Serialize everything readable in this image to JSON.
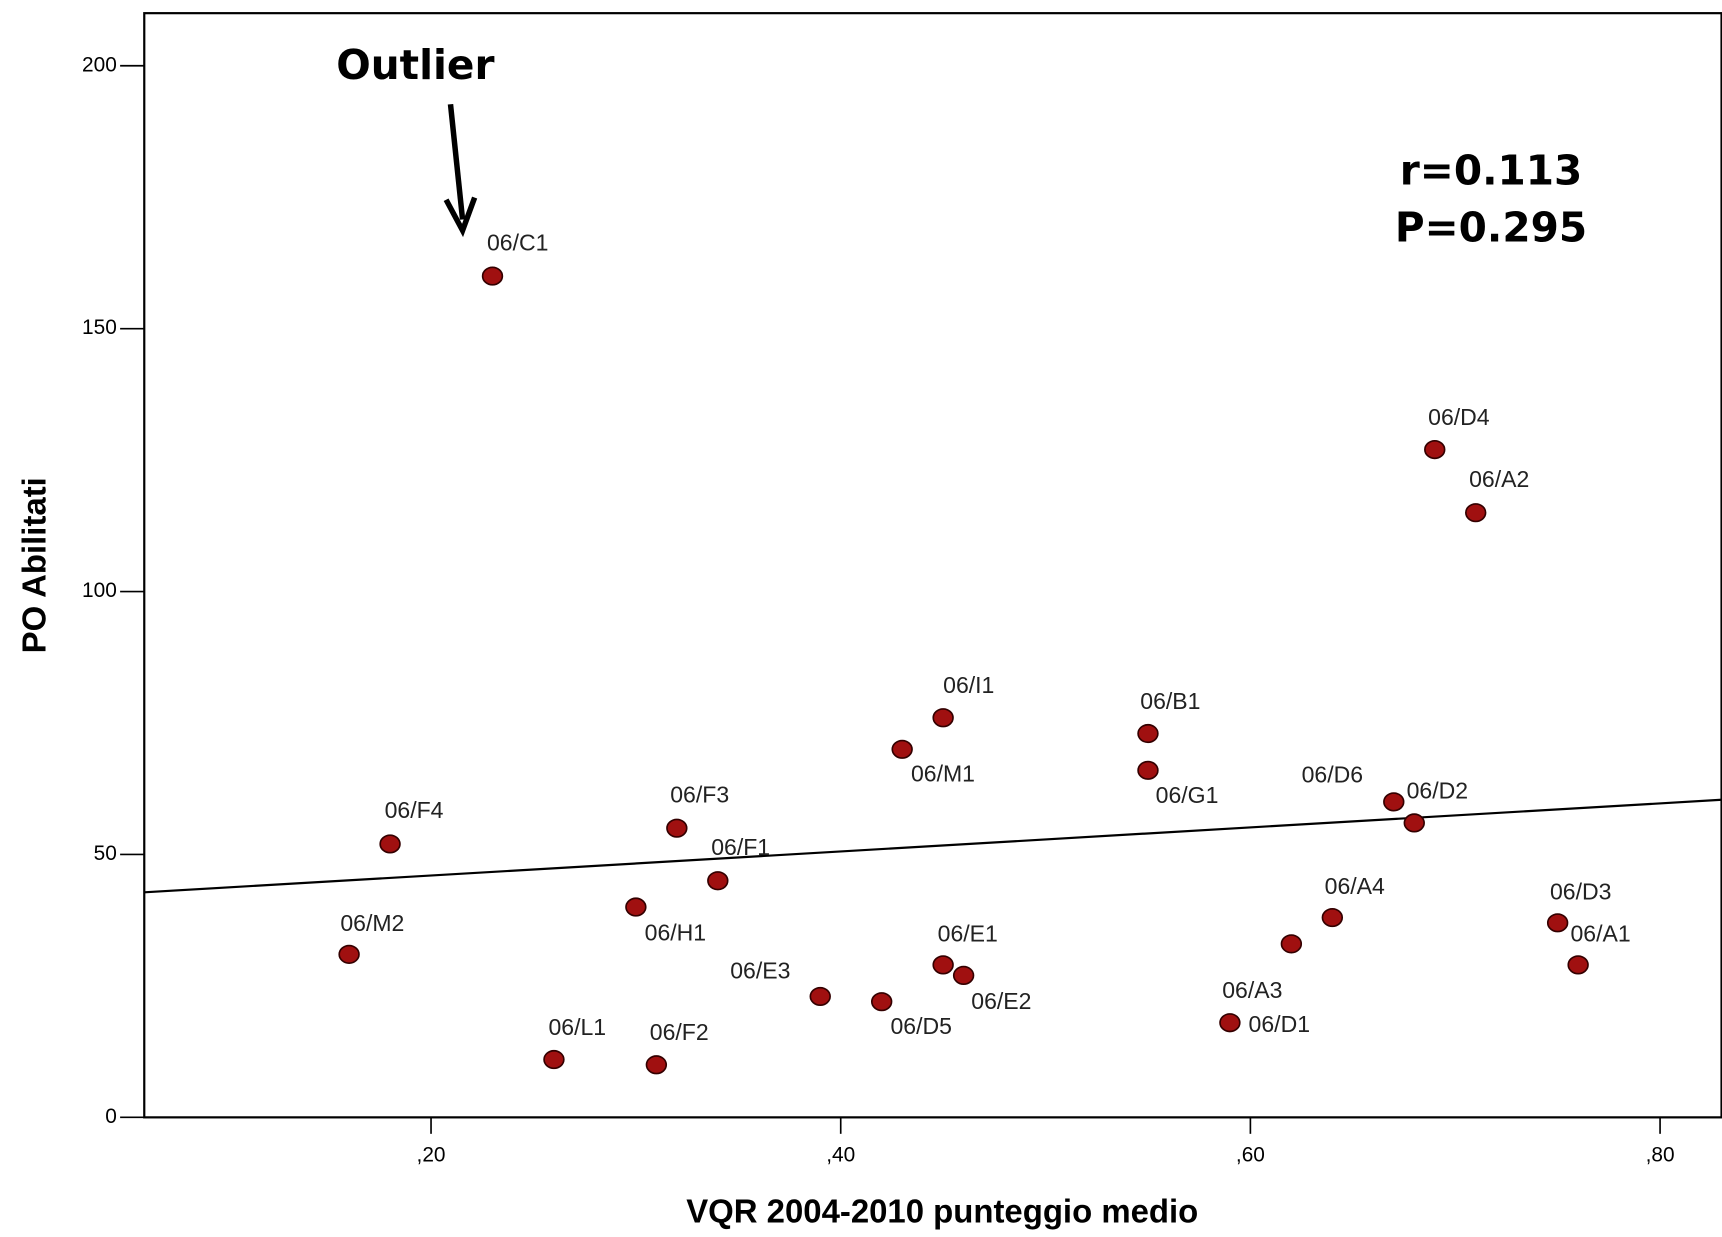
{
  "chart_data": {
    "type": "scatter",
    "x_label": "VQR 2004-2010 punteggio medio",
    "y_label": "PO Abilitati",
    "xlim": [
      0.06,
      0.83
    ],
    "ylim": [
      0,
      210
    ],
    "xticks": [
      {
        "value": 0.2,
        "label": ",20"
      },
      {
        "value": 0.4,
        "label": ",40"
      },
      {
        "value": 0.6,
        "label": ",60"
      },
      {
        "value": 0.8,
        "label": ",80"
      }
    ],
    "yticks": [
      0,
      50,
      100,
      150,
      200
    ],
    "color": "#a01010",
    "point_labels": [
      "06/C1",
      "06/D4",
      "06/A2",
      "06/I1",
      "06/M1",
      "06/B1",
      "06/G1",
      "06/D6",
      "06/D2",
      "06/F4",
      "06/F3",
      "06/F1",
      "06/H1",
      "06/M2",
      "06/A4",
      "06/D3",
      "06/A1",
      "06/E1",
      "06/E2",
      "06/E3",
      "06/D5",
      "06/A3",
      "06/D1",
      "06/L1",
      "06/F2"
    ],
    "x": [
      0.23,
      0.69,
      0.71,
      0.45,
      0.43,
      0.55,
      0.55,
      0.67,
      0.68,
      0.18,
      0.32,
      0.34,
      0.3,
      0.16,
      0.64,
      0.75,
      0.76,
      0.45,
      0.46,
      0.39,
      0.42,
      0.62,
      0.59,
      0.26,
      0.31
    ],
    "values": [
      160,
      127,
      115,
      76,
      70,
      73,
      66,
      60,
      56,
      52,
      55,
      45,
      40,
      31,
      38,
      37,
      29,
      29,
      27,
      23,
      22,
      33,
      18,
      11,
      10
    ],
    "fit_line": {
      "x": [
        0.06,
        0.83
      ],
      "y": [
        42.8,
        60.4
      ]
    },
    "annotations": [
      "Outlier",
      "r=0.113",
      "P=0.295"
    ]
  }
}
